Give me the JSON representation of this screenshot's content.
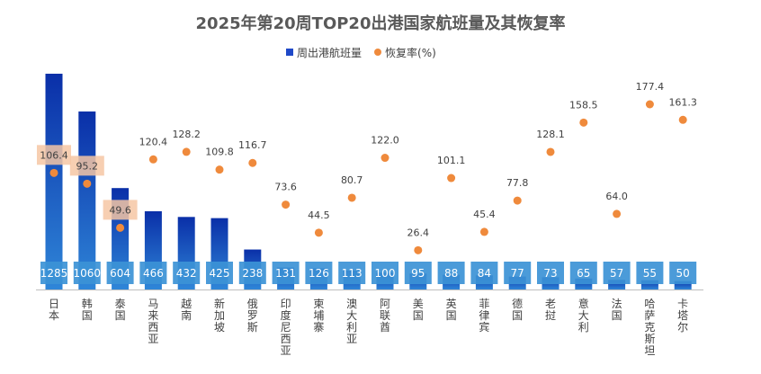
{
  "title": "2025年第20周TOP20出港国家航班量及其恢复率",
  "legend": {
    "bar_label": "周出港航班量",
    "dot_label": "恢复率(%)"
  },
  "colors": {
    "bar_top": "#0a2fa8",
    "bar_bottom": "#2f86d8",
    "label_box": "#3c93d6",
    "dot": "#ef8a3c",
    "highlight": "#f6c7a4",
    "axis": "#bfbfbf"
  },
  "chart_data": {
    "type": "bar",
    "categories": [
      "日本",
      "韩国",
      "泰国",
      "马来西亚",
      "越南",
      "新加坡",
      "俄罗斯",
      "印度尼西亚",
      "柬埔寨",
      "澳大利亚",
      "阿联酋",
      "美国",
      "英国",
      "菲律宾",
      "德国",
      "老挝",
      "意大利",
      "法国",
      "哈萨克斯坦",
      "卡塔尔"
    ],
    "series": [
      {
        "name": "周出港航班量",
        "type": "bar",
        "values": [
          1285,
          1060,
          604,
          466,
          432,
          425,
          238,
          131,
          126,
          113,
          100,
          95,
          88,
          84,
          77,
          73,
          65,
          57,
          55,
          50
        ]
      },
      {
        "name": "恢复率(%)",
        "type": "scatter",
        "values": [
          106.4,
          95.2,
          49.6,
          120.4,
          128.2,
          109.8,
          116.7,
          73.6,
          44.5,
          80.7,
          122.0,
          26.4,
          101.1,
          45.4,
          77.8,
          128.1,
          158.5,
          64.0,
          177.4,
          161.3
        ]
      }
    ],
    "value_labels": [
      "1285",
      "1060",
      "604",
      "466",
      "432",
      "425",
      "238",
      "131",
      "126",
      "113",
      "100",
      "95",
      "88",
      "84",
      "77",
      "73",
      "65",
      "57",
      "55",
      "50"
    ],
    "rate_labels": [
      "106.4",
      "95.2",
      "49.6",
      "120.4",
      "128.2",
      "109.8",
      "116.7",
      "73.6",
      "44.5",
      "80.7",
      "122.0",
      "26.4",
      "101.1",
      "45.4",
      "77.8",
      "128.1",
      "158.5",
      "64.0",
      "177.4",
      "161.3"
    ],
    "highlighted_rates": [
      0,
      1,
      2
    ],
    "grid": false,
    "legend_position": "top-center"
  }
}
